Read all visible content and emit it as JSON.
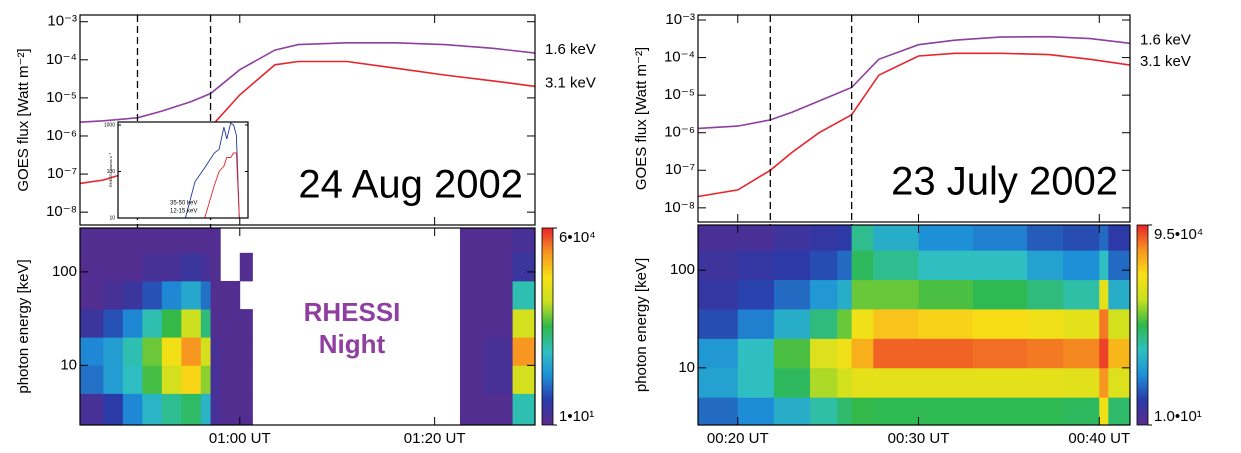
{
  "chart_data": [
    {
      "type": "line",
      "ylabel": "GOES flux [Watt m⁻²]",
      "annotation": "24 Aug 2002",
      "yscale": "log",
      "xlim": [
        43.6,
        90.3
      ],
      "ylim": [
        4.6e-09,
        0.0015
      ],
      "yticks": [
        {
          "value": 1e-08,
          "label": "10⁻⁸"
        },
        {
          "value": 1e-07,
          "label": "10⁻⁷"
        },
        {
          "value": 1e-06,
          "label": "10⁻⁶"
        },
        {
          "value": 1e-05,
          "label": "10⁻⁵"
        },
        {
          "value": 0.0001,
          "label": "10⁻⁴"
        },
        {
          "value": 0.001,
          "label": "10⁻³"
        }
      ],
      "xticks": [
        60,
        80
      ],
      "vlines": [
        49.5,
        57
      ],
      "legend": "outside-right",
      "x": [
        43.6,
        46,
        49.5,
        52,
        55,
        57,
        60,
        63.6,
        66,
        71,
        76,
        81,
        86,
        90.3
      ],
      "series": [
        {
          "name": "1.6 keV",
          "color": "#8e3fa0",
          "values": [
            2.3e-06,
            2.5e-06,
            3e-06,
            4.5e-06,
            8e-06,
            1.3e-05,
            5.5e-05,
            0.00018,
            0.00025,
            0.00028,
            0.00028,
            0.00025,
            0.0002,
            0.00015
          ]
        },
        {
          "name": "3.1 keV",
          "color": "#e8242b",
          "values": [
            5.7e-08,
            7e-08,
            1.3e-07,
            2.5e-07,
            6e-07,
            1.7e-06,
            1.2e-05,
            7.4e-05,
            9e-05,
            9e-05,
            6e-05,
            4e-05,
            2.8e-05,
            2e-05
          ]
        }
      ]
    },
    {
      "type": "line",
      "ylabel": "RHESSI counts s⁻¹",
      "yscale": "log",
      "xlim": [
        47.5,
        61
      ],
      "ylim": [
        10,
        1160
      ],
      "yticks": [
        10,
        100,
        1000
      ],
      "legend": "lower-right",
      "x": [
        54.5,
        55.5,
        56.5,
        57.5,
        58,
        58.5,
        58.8,
        59.2,
        59.5,
        59.8,
        60.1
      ],
      "series": [
        {
          "name": "35-50 keV",
          "color": "#27339a",
          "values": [
            10,
            60,
            120,
            250,
            300,
            900,
            500,
            1100,
            1000,
            600,
            10
          ]
        },
        {
          "name": "12-15 keV",
          "color": "#e8242b",
          "values": [
            null,
            null,
            10,
            50,
            100,
            130,
            200,
            200,
            250,
            250,
            10
          ]
        }
      ]
    },
    {
      "type": "heatmap",
      "ylabel": "photon energy [keV]",
      "annotation": "RHESSI Night",
      "yscale": "log",
      "xlim": [
        43.6,
        90.3
      ],
      "ylim": [
        2.3,
        295
      ],
      "yticks": [
        10,
        100
      ],
      "xticks": [
        {
          "value": 60,
          "label": "01:00 UT"
        },
        {
          "value": 80,
          "label": "01:20 UT"
        }
      ],
      "x_bins": [
        43.6,
        46,
        48,
        50,
        52,
        54,
        56,
        57,
        58,
        60,
        61.3,
        82.6,
        85,
        88,
        90.3
      ],
      "y_bins": [
        2.3,
        5,
        10,
        20,
        40,
        80,
        160,
        295
      ],
      "z": [
        [
          15,
          30,
          80,
          200,
          400,
          600,
          200,
          15,
          12,
          12,
          null,
          12,
          12,
          300
        ],
        [
          60,
          120,
          250,
          900,
          3000,
          8000,
          1500,
          15,
          12,
          12,
          null,
          12,
          15,
          3000
        ],
        [
          80,
          120,
          300,
          1200,
          6000,
          20000,
          3000,
          15,
          12,
          12,
          null,
          12,
          15,
          20000
        ],
        [
          20,
          40,
          80,
          300,
          800,
          2500,
          500,
          12,
          12,
          12,
          null,
          12,
          12,
          3000
        ],
        [
          12,
          15,
          20,
          40,
          80,
          150,
          60,
          12,
          12,
          null,
          null,
          12,
          12,
          300
        ],
        [
          12,
          12,
          12,
          15,
          15,
          20,
          15,
          12,
          null,
          12,
          null,
          12,
          12,
          20
        ],
        [
          12,
          12,
          12,
          12,
          12,
          12,
          12,
          12,
          null,
          null,
          null,
          12,
          12,
          15
        ]
      ],
      "zscale": "log",
      "zlim": [
        10,
        60000
      ],
      "zticks": [
        {
          "value": 10,
          "label": "1•10¹"
        },
        {
          "value": 60000,
          "label": "6•10⁴"
        }
      ],
      "colormap": [
        "#5a2b8c",
        "#2a3aa8",
        "#1e8fd8",
        "#2fc0c0",
        "#2fb84a",
        "#c8e020",
        "#f8e016",
        "#f79520",
        "#e8242b"
      ]
    },
    {
      "type": "line",
      "ylabel": "GOES flux [Watt m⁻²]",
      "annotation": "23 July 2002",
      "yscale": "log",
      "xlim": [
        17.8,
        41.7
      ],
      "ylim": [
        4.2e-09,
        0.00136
      ],
      "yticks": [
        {
          "value": 1e-08,
          "label": "10⁻⁸"
        },
        {
          "value": 1e-07,
          "label": "10⁻⁷"
        },
        {
          "value": 1e-06,
          "label": "10⁻⁶"
        },
        {
          "value": 1e-05,
          "label": "10⁻⁵"
        },
        {
          "value": 0.0001,
          "label": "10⁻⁴"
        },
        {
          "value": 0.001,
          "label": "10⁻³"
        }
      ],
      "xticks": [
        20,
        30,
        40
      ],
      "vlines": [
        21.8,
        26.3
      ],
      "legend": "outside-right",
      "x": [
        17.8,
        20,
        21.8,
        23,
        24.5,
        26.3,
        27.8,
        30,
        32,
        34.5,
        37.2,
        39.5,
        41.7
      ],
      "series": [
        {
          "name": "1.6 keV",
          "color": "#8e3fa0",
          "values": [
            1.3e-06,
            1.5e-06,
            2.2e-06,
            3.5e-06,
            7e-06,
            1.6e-05,
            9e-05,
            0.00022,
            0.00029,
            0.00035,
            0.00036,
            0.00032,
            0.00024
          ]
        },
        {
          "name": "3.1 keV",
          "color": "#e8242b",
          "values": [
            2e-08,
            3e-08,
            1e-07,
            3e-07,
            1e-06,
            3e-06,
            3.4e-05,
            0.00011,
            0.00013,
            0.00013,
            0.00012,
            9e-05,
            6.3e-05
          ]
        }
      ]
    },
    {
      "type": "heatmap",
      "ylabel": "photon energy [keV]",
      "yscale": "log",
      "xlim": [
        17.8,
        41.7
      ],
      "ylim": [
        2.6,
        290
      ],
      "yticks": [
        10,
        100
      ],
      "xticks": [
        {
          "value": 20,
          "label": "00:20 UT"
        },
        {
          "value": 30,
          "label": "00:30 UT"
        },
        {
          "value": 40,
          "label": "00:40 UT"
        }
      ],
      "x_bins": [
        17.8,
        20,
        22,
        24,
        25.5,
        26.3,
        27.5,
        30,
        33,
        36,
        38,
        40,
        40.5,
        41.7
      ],
      "y_bins": [
        2.6,
        5,
        10,
        20,
        40,
        80,
        160,
        290
      ],
      "z": [
        [
          60,
          95,
          200,
          400,
          700,
          1000,
          900,
          900,
          900,
          900,
          800,
          8000,
          700
        ],
        [
          150,
          300,
          800,
          2500,
          4000,
          6000,
          6000,
          6000,
          6000,
          6000,
          5500,
          30000,
          5000
        ],
        [
          120,
          300,
          1200,
          5000,
          8000,
          20000,
          50000,
          50000,
          45000,
          40000,
          35000,
          70000,
          18000
        ],
        [
          40,
          80,
          200,
          600,
          1500,
          8000,
          15000,
          12000,
          10000,
          8000,
          6000,
          40000,
          4000
        ],
        [
          25,
          35,
          60,
          120,
          200,
          1500,
          1500,
          1200,
          900,
          600,
          400,
          6000,
          200
        ],
        [
          20,
          25,
          30,
          40,
          60,
          800,
          500,
          300,
          300,
          150,
          100,
          300,
          60
        ],
        [
          15,
          15,
          20,
          25,
          30,
          500,
          200,
          100,
          80,
          50,
          40,
          60,
          30
        ]
      ],
      "zscale": "log",
      "zlim": [
        10,
        95000
      ],
      "zticks": [
        {
          "value": 10,
          "label": "1.0•10¹"
        },
        {
          "value": 95000,
          "label": "9.5•10⁴"
        }
      ],
      "colormap": [
        "#5a2b8c",
        "#2a3aa8",
        "#1e8fd8",
        "#2fc0c0",
        "#2fb84a",
        "#c8e020",
        "#f8e016",
        "#f79520",
        "#e8242b"
      ]
    }
  ]
}
